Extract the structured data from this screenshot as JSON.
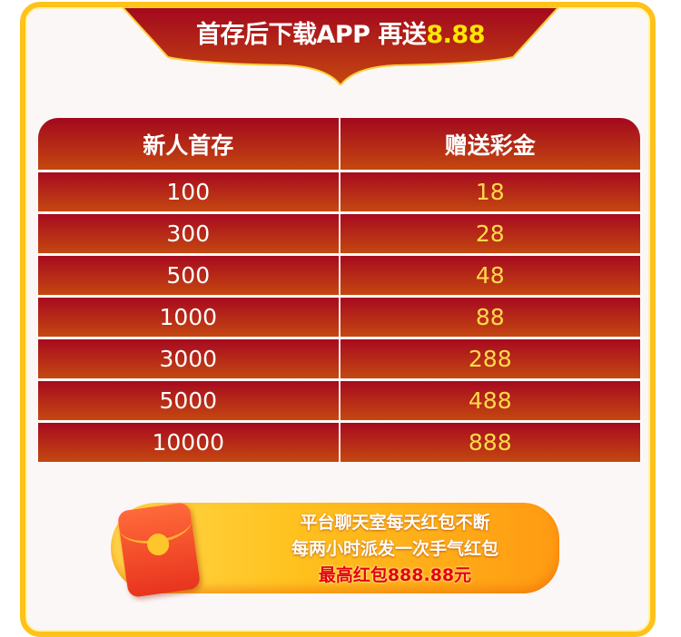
{
  "banner": {
    "title": "首存后下载APP 再送",
    "highlight": "8.88"
  },
  "table": {
    "headers": [
      "新人首存",
      "赠送彩金"
    ],
    "rows": [
      [
        "100",
        "18"
      ],
      [
        "300",
        "28"
      ],
      [
        "500",
        "48"
      ],
      [
        "1000",
        "88"
      ],
      [
        "3000",
        "288"
      ],
      [
        "5000",
        "488"
      ],
      [
        "10000",
        "888"
      ]
    ]
  },
  "promo": {
    "line1": "平台聊天室每天红包不断",
    "line2": "每两小时派发一次手气红包",
    "line3": "最高红包888.88元",
    "icon": "red-envelope-icon"
  },
  "colors": {
    "frame": "#ffc21a",
    "table_red": "#a70a1f",
    "value_yellow": "#ffd94a",
    "highlight": "#ffe600"
  }
}
